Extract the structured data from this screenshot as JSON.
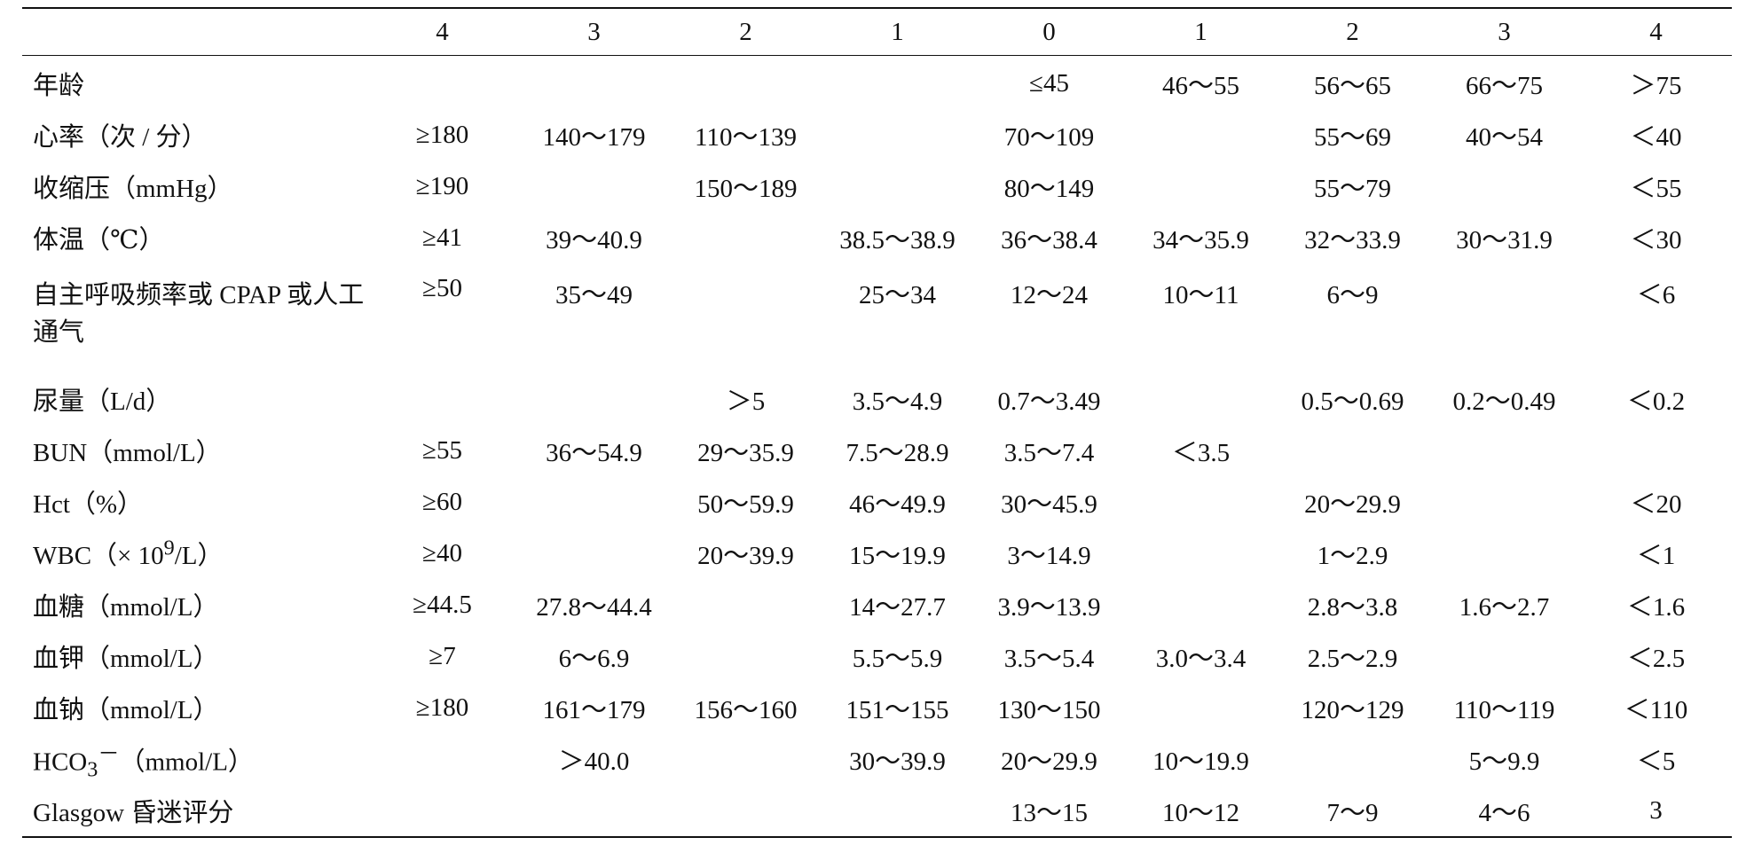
{
  "table": {
    "header": [
      "",
      "4",
      "3",
      "2",
      "1",
      "0",
      "1",
      "2",
      "3",
      "4"
    ],
    "rows": [
      {
        "label": "年龄",
        "cells": [
          "",
          "",
          "",
          "",
          "≤45",
          "46～55",
          "56～65",
          "66～75",
          "＞75"
        ]
      },
      {
        "label": "心率（次 / 分）",
        "cells": [
          "≥180",
          "140～179",
          "110～139",
          "",
          "70～109",
          "",
          "55～69",
          "40～54",
          "＜40"
        ]
      },
      {
        "label": "收缩压（mmHg）",
        "cells": [
          "≥190",
          "",
          "150～189",
          "",
          "80～149",
          "",
          "55～79",
          "",
          "＜55"
        ]
      },
      {
        "label": "体温（℃）",
        "cells": [
          "≥41",
          "39～40.9",
          "",
          "38.5～38.9",
          "36～38.4",
          "34～35.9",
          "32～33.9",
          "30～31.9",
          "＜30"
        ]
      },
      {
        "label": "自主呼吸频率或 CPAP 或人工通气",
        "cells": [
          "≥50",
          "35～49",
          "",
          "25～34",
          "12～24",
          "10～11",
          "6～9",
          "",
          "＜6"
        ]
      },
      {
        "label": "尿量（L/d）",
        "cells": [
          "",
          "",
          "＞5",
          "3.5～4.9",
          "0.7～3.49",
          "",
          "0.5～0.69",
          "0.2～0.49",
          "＜0.2"
        ]
      },
      {
        "label": "BUN（mmol/L）",
        "cells": [
          "≥55",
          "36～54.9",
          "29～35.9",
          "7.5～28.9",
          "3.5～7.4",
          "＜3.5",
          "",
          "",
          ""
        ]
      },
      {
        "label": "Hct（%）",
        "cells": [
          "≥60",
          "",
          "50～59.9",
          "46～49.9",
          "30～45.9",
          "",
          "20～29.9",
          "",
          "＜20"
        ]
      },
      {
        "label_pre": "WBC（× 10",
        "label_sup": "9",
        "label_post": "/L）",
        "cells": [
          "≥40",
          "",
          "20～39.9",
          "15～19.9",
          "3～14.9",
          "",
          "1～2.9",
          "",
          "＜1"
        ]
      },
      {
        "label": "血糖（mmol/L）",
        "cells": [
          "≥44.5",
          "27.8～44.4",
          "",
          "14～27.7",
          "3.9～13.9",
          "",
          "2.8～3.8",
          "1.6～2.7",
          "＜1.6"
        ]
      },
      {
        "label": "血钾（mmol/L）",
        "cells": [
          "≥7",
          "6～6.9",
          "",
          "5.5～5.9",
          "3.5～5.4",
          "3.0～3.4",
          "2.5～2.9",
          "",
          "＜2.5"
        ]
      },
      {
        "label": "血钠（mmol/L）",
        "cells": [
          "≥180",
          "161～179",
          "156～160",
          "151～155",
          "130～150",
          "",
          "120～129",
          "110～119",
          "＜110"
        ]
      },
      {
        "label_pre": "HCO",
        "label_sub": "3",
        "label_sup": "－",
        "label_post": "（mmol/L）",
        "cells": [
          "",
          "＞40.0",
          "",
          "30～39.9",
          "20～29.9",
          "10～19.9",
          "",
          "5～9.9",
          "＜5"
        ]
      },
      {
        "label": "Glasgow 昏迷评分",
        "cells": [
          "",
          "",
          "",
          "",
          "13～15",
          "10～12",
          "7～9",
          "4～6",
          "3"
        ]
      }
    ]
  }
}
